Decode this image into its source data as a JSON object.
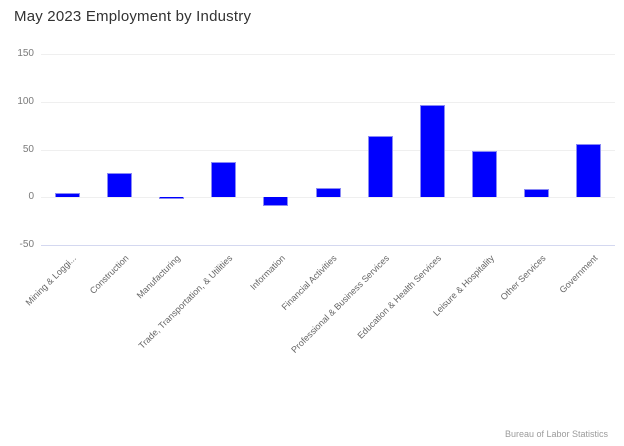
{
  "title": "May 2023 Employment by Industry",
  "credit": "Bureau of Labor Statistics",
  "colors": {
    "bar_fill": "#0000fe",
    "bar_border": "#8a8af5",
    "gridline": "#efefef",
    "axis_line": "#d4d8f0",
    "title_text": "#323232",
    "ytick_text": "#7a7a7a",
    "xlabel_text": "#666666",
    "credit_text": "#9b9b9b"
  },
  "chart_data": {
    "type": "bar",
    "title": "May 2023 Employment by Industry",
    "categories": [
      "Mining & Loggi...",
      "Construction",
      "Manufacturing",
      "Trade, Transportation, & Utilities",
      "Information",
      "Financial Activities",
      "Professional & Business Services",
      "Education & Health Services",
      "Leisure & Hospitality",
      "Other Services",
      "Government"
    ],
    "values": [
      4,
      25,
      -2,
      37,
      -9,
      10,
      64,
      97,
      48,
      9,
      56
    ],
    "xlabel": "",
    "ylabel": "",
    "ylim": [
      -50,
      150
    ],
    "yticks": [
      150,
      100,
      50,
      0,
      -50
    ],
    "grid": true,
    "legend": "none",
    "source_note": "Bureau of Labor Statistics"
  }
}
